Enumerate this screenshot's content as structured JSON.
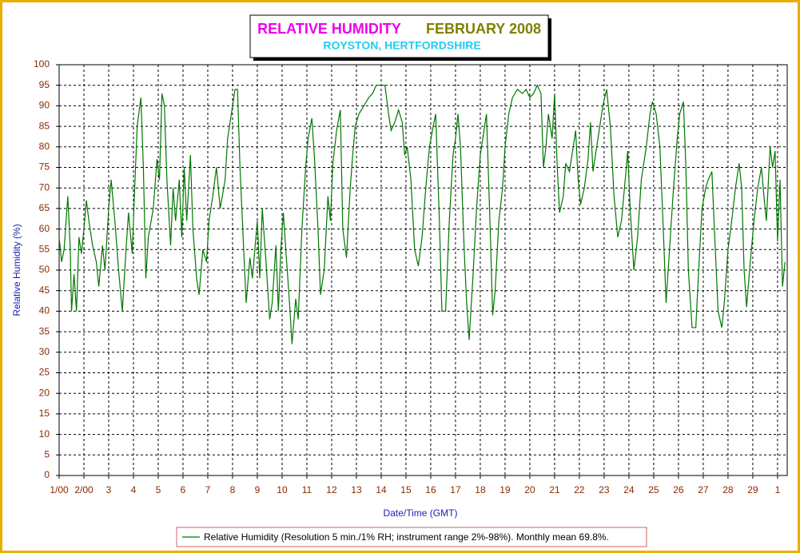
{
  "chart_data": {
    "type": "line",
    "title": "RELATIVE HUMIDITY",
    "title_date": "FEBRUARY 2008",
    "subtitle": "ROYSTON, HERTFORDSHIRE",
    "x_label": "Date/Time (GMT)",
    "y_label": "Relative Humidity (%)",
    "xlim": [
      1,
      30.39
    ],
    "ylim": [
      0,
      100
    ],
    "xticks": [
      {
        "value": 1,
        "label": "1/00"
      },
      {
        "value": 2,
        "label": "2/00"
      },
      3,
      4,
      5,
      6,
      7,
      8,
      9,
      10,
      11,
      12,
      13,
      14,
      15,
      16,
      17,
      18,
      19,
      20,
      21,
      22,
      23,
      24,
      25,
      26,
      27,
      28,
      29,
      {
        "value": 30,
        "label": "1"
      }
    ],
    "yticks": [
      0,
      5,
      10,
      15,
      20,
      25,
      30,
      35,
      40,
      45,
      50,
      55,
      60,
      65,
      70,
      75,
      80,
      85,
      90,
      95,
      100
    ],
    "grid": true,
    "series": [
      {
        "name": "Relative Humidity (Resolution 5 min./1% RH; instrument range 2%-98%). Monthly mean 69.8%.",
        "color": "#007700",
        "x": [
          1.0,
          1.1,
          1.2,
          1.35,
          1.45,
          1.5,
          1.6,
          1.7,
          1.8,
          1.9,
          2.0,
          2.1,
          2.2,
          2.35,
          2.5,
          2.6,
          2.75,
          2.85,
          3.0,
          3.1,
          3.25,
          3.4,
          3.55,
          3.7,
          3.8,
          3.95,
          4.05,
          4.15,
          4.3,
          4.4,
          4.5,
          4.6,
          4.8,
          4.95,
          5.05,
          5.15,
          5.25,
          5.35,
          5.5,
          5.6,
          5.7,
          5.85,
          5.95,
          6.05,
          6.15,
          6.3,
          6.4,
          6.55,
          6.65,
          6.8,
          6.95,
          7.05,
          7.2,
          7.35,
          7.5,
          7.7,
          7.8,
          7.95,
          8.1,
          8.2,
          8.3,
          8.45,
          8.55,
          8.7,
          8.8,
          8.9,
          9.0,
          9.1,
          9.2,
          9.35,
          9.5,
          9.6,
          9.75,
          9.85,
          9.95,
          10.05,
          10.15,
          10.3,
          10.4,
          10.55,
          10.65,
          10.8,
          10.95,
          11.05,
          11.2,
          11.3,
          11.45,
          11.55,
          11.7,
          11.85,
          11.95,
          12.05,
          12.2,
          12.35,
          12.45,
          12.6,
          12.75,
          12.85,
          12.95,
          13.1,
          13.3,
          13.5,
          13.65,
          13.8,
          14.0,
          14.15,
          14.3,
          14.4,
          14.55,
          14.7,
          14.85,
          14.95,
          15.05,
          15.2,
          15.35,
          15.5,
          15.65,
          15.8,
          15.95,
          16.1,
          16.2,
          16.35,
          16.45,
          16.6,
          16.75,
          16.9,
          17.0,
          17.1,
          17.2,
          17.35,
          17.45,
          17.55,
          17.7,
          17.85,
          18.0,
          18.1,
          18.25,
          18.4,
          18.5,
          18.6,
          18.75,
          18.9,
          19.0,
          19.15,
          19.3,
          19.5,
          19.7,
          19.85,
          20.0,
          20.15,
          20.3,
          20.45,
          20.55,
          20.65,
          20.75,
          20.9,
          21.0,
          21.1,
          21.2,
          21.35,
          21.45,
          21.6,
          21.75,
          21.85,
          21.95,
          22.05,
          22.2,
          22.35,
          22.45,
          22.55,
          22.75,
          22.95,
          23.1,
          23.25,
          23.4,
          23.55,
          23.7,
          23.85,
          23.95,
          24.05,
          24.2,
          24.35,
          24.5,
          24.7,
          24.85,
          24.95,
          25.1,
          25.25,
          25.4,
          25.5,
          25.65,
          25.8,
          25.95,
          26.05,
          26.2,
          26.3,
          26.4,
          26.55,
          26.7,
          26.8,
          26.95,
          27.1,
          27.2,
          27.35,
          27.45,
          27.6,
          27.75,
          27.85,
          28.0,
          28.15,
          28.3,
          28.45,
          28.55,
          28.65,
          28.75,
          28.9,
          29.05,
          29.2,
          29.35,
          29.45,
          29.55,
          29.7,
          29.8,
          29.9,
          30.0,
          30.1,
          30.2,
          30.3
        ],
        "values": [
          58,
          52,
          55,
          68,
          55,
          40,
          49,
          40,
          58,
          54,
          60,
          67,
          62,
          56,
          52,
          46,
          56,
          50,
          65,
          72,
          62,
          50,
          40,
          55,
          64,
          54,
          70,
          85,
          92,
          75,
          48,
          58,
          65,
          77,
          72,
          93,
          90,
          72,
          56,
          70,
          62,
          72,
          58,
          75,
          62,
          78,
          60,
          48,
          44,
          55,
          52,
          62,
          68,
          75,
          65,
          72,
          82,
          88,
          94,
          94,
          75,
          55,
          42,
          53,
          48,
          55,
          62,
          48,
          65,
          52,
          38,
          42,
          56,
          40,
          55,
          64,
          55,
          42,
          32,
          43,
          38,
          60,
          75,
          82,
          87,
          78,
          60,
          44,
          50,
          68,
          62,
          76,
          84,
          89,
          60,
          53,
          70,
          78,
          85,
          88,
          90,
          92,
          93,
          95,
          95,
          95,
          88,
          84,
          86,
          89,
          86,
          78,
          80,
          72,
          55,
          51,
          58,
          70,
          80,
          85,
          88,
          62,
          40,
          40,
          62,
          78,
          82,
          88,
          80,
          55,
          42,
          33,
          48,
          65,
          78,
          82,
          88,
          60,
          39,
          45,
          62,
          70,
          80,
          88,
          92,
          94,
          93,
          94,
          92,
          93,
          95,
          93,
          75,
          80,
          88,
          82,
          93,
          76,
          64,
          68,
          76,
          74,
          80,
          84,
          72,
          66,
          70,
          77,
          86,
          74,
          82,
          90,
          94,
          85,
          68,
          58,
          62,
          72,
          79,
          65,
          50,
          58,
          72,
          80,
          88,
          91,
          88,
          80,
          58,
          42,
          56,
          70,
          82,
          88,
          91,
          75,
          50,
          36,
          36,
          48,
          65,
          70,
          72,
          74,
          60,
          40,
          36,
          42,
          55,
          62,
          70,
          76,
          70,
          50,
          41,
          52,
          62,
          70,
          75,
          68,
          62,
          80,
          75,
          79,
          57,
          72,
          46,
          52
        ]
      }
    ]
  }
}
